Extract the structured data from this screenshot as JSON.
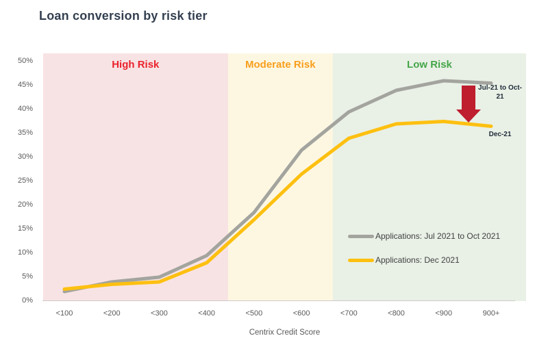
{
  "title": "Loan conversion by risk tier",
  "chart_data": {
    "type": "line",
    "title": "Loan conversion by risk tier",
    "xlabel": "Centrix Credit Score",
    "ylabel": "",
    "categories": [
      "<100",
      "<200",
      "<300",
      "<400",
      "<500",
      "<600",
      "<700",
      "<800",
      "<900",
      "900+"
    ],
    "series": [
      {
        "name": "Applications: Jul 2021 to Oct 2021",
        "color": "#a3a49e",
        "values": [
          2,
          4,
          5,
          9.5,
          18.5,
          31.5,
          39.5,
          44,
          46,
          45.5
        ]
      },
      {
        "name": "Applications: Dec 2021",
        "color": "#fdc010",
        "values": [
          2.5,
          3.5,
          4,
          8,
          17,
          26.5,
          34,
          37,
          37.5,
          36.5
        ]
      }
    ],
    "ylim": [
      0,
      50
    ],
    "ytick_values": [
      0,
      5,
      10,
      15,
      20,
      25,
      30,
      35,
      40,
      45,
      50
    ],
    "ytick_labels": [
      "0%",
      "5%",
      "10%",
      "15%",
      "20%",
      "25%",
      "30%",
      "35%",
      "40%",
      "45%",
      "50%"
    ],
    "grid": false,
    "legend_position": "lower right",
    "regions": [
      {
        "label": "High Risk",
        "text_color": "#e9222c",
        "bg_color": "#f8e3e4",
        "from_idx": -0.45,
        "to_idx": 3.45
      },
      {
        "label": "Moderate Risk",
        "text_color": "#f89e1b",
        "bg_color": "#fdf7e2",
        "from_idx": 3.45,
        "to_idx": 5.66
      },
      {
        "label": "Low Risk",
        "text_color": "#44a648",
        "bg_color": "#e9f0e6",
        "from_idx": 5.66,
        "to_idx": 9.74
      }
    ],
    "annotations": [
      {
        "text": "Jul-21 to Oct-21",
        "target": "end of Jul-Oct line"
      },
      {
        "text": "Dec-21",
        "target": "end of Dec line"
      }
    ],
    "arrow": {
      "direction": "down",
      "color": "#be1e2d"
    },
    "axis_line_color": "#cfc9c9"
  }
}
